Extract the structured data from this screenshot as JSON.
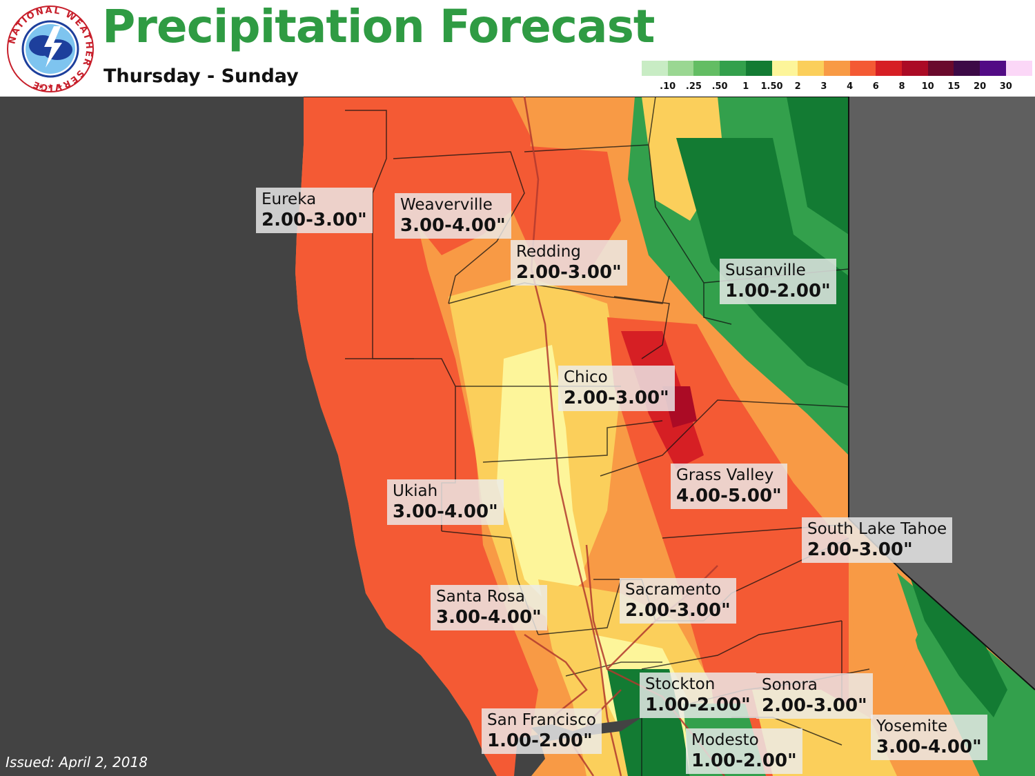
{
  "header": {
    "title": "Precipitation Forecast",
    "subtitle": "Thursday - Sunday",
    "logo_text": "NATIONAL WEATHER SERVICE"
  },
  "legend": {
    "items": [
      {
        "label": ".10",
        "color": "#c8ecc4"
      },
      {
        "label": ".25",
        "color": "#9ad792"
      },
      {
        "label": ".50",
        "color": "#63bd63"
      },
      {
        "label": "1",
        "color": "#33a04c"
      },
      {
        "label": "1.50",
        "color": "#137b33"
      },
      {
        "label": "2",
        "color": "#fdf59a"
      },
      {
        "label": "3",
        "color": "#fbcf5b"
      },
      {
        "label": "4",
        "color": "#f89a45"
      },
      {
        "label": "6",
        "color": "#f45a34"
      },
      {
        "label": "8",
        "color": "#d61f24"
      },
      {
        "label": "10",
        "color": "#ab0b25"
      },
      {
        "label": "15",
        "color": "#6a0a2c"
      },
      {
        "label": "20",
        "color": "#3c0a46"
      },
      {
        "label": "30",
        "color": "#520b85"
      },
      {
        "label": "",
        "color": "#fbd7f7"
      }
    ]
  },
  "cities": [
    {
      "name": "Eureka",
      "range": "2.00-3.00\""
    },
    {
      "name": "Weaverville",
      "range": "3.00-4.00\""
    },
    {
      "name": "Redding",
      "range": "2.00-3.00\""
    },
    {
      "name": "Susanville",
      "range": "1.00-2.00\""
    },
    {
      "name": "Chico",
      "range": "2.00-3.00\""
    },
    {
      "name": "Grass Valley",
      "range": "4.00-5.00\""
    },
    {
      "name": "Ukiah",
      "range": "3.00-4.00\""
    },
    {
      "name": "South Lake Tahoe",
      "range": "2.00-3.00\""
    },
    {
      "name": "Santa Rosa",
      "range": "3.00-4.00\""
    },
    {
      "name": "Sacramento",
      "range": "2.00-3.00\""
    },
    {
      "name": "Stockton",
      "range": "1.00-2.00\""
    },
    {
      "name": "Sonora",
      "range": "2.00-3.00\""
    },
    {
      "name": "San Francisco",
      "range": "1.00-2.00\""
    },
    {
      "name": "Modesto",
      "range": "1.00-2.00\""
    },
    {
      "name": "Yosemite",
      "range": "3.00-4.00\""
    }
  ],
  "footer": {
    "issued": "Issued: April 2, 2018"
  },
  "colors": {
    "title_green": "#2f9b43",
    "ocean": "#434343",
    "nevada": "#5f5f5f"
  }
}
